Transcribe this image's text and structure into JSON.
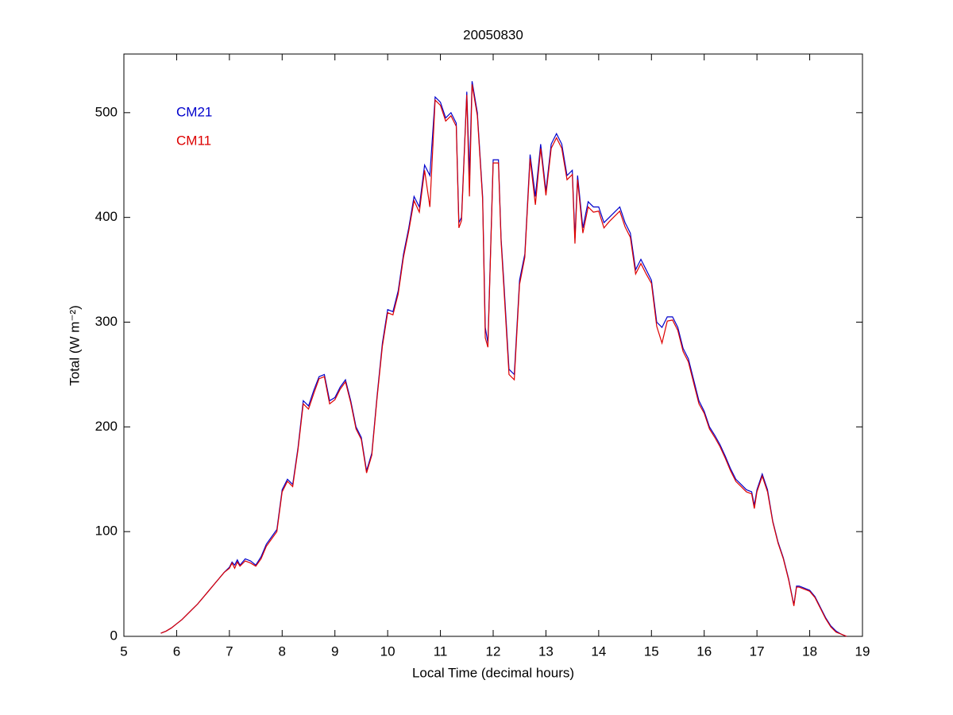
{
  "chart_data": {
    "type": "line",
    "title": "20050830",
    "xlabel": "Local Time (decimal hours)",
    "ylabel": "Total (W m⁻²)",
    "xlim": [
      5,
      19
    ],
    "xticks": [
      5,
      6,
      7,
      8,
      9,
      10,
      11,
      12,
      13,
      14,
      15,
      16,
      17,
      18,
      19
    ],
    "ylim": [
      0,
      556
    ],
    "yticks": [
      0,
      100,
      200,
      300,
      400,
      500
    ],
    "grid": false,
    "legend": "upper left",
    "x": [
      5.7,
      5.8,
      5.9,
      6.0,
      6.1,
      6.2,
      6.3,
      6.4,
      6.5,
      6.6,
      6.7,
      6.8,
      6.9,
      7.0,
      7.05,
      7.1,
      7.15,
      7.2,
      7.3,
      7.4,
      7.5,
      7.6,
      7.7,
      7.8,
      7.9,
      8.0,
      8.1,
      8.2,
      8.3,
      8.4,
      8.5,
      8.6,
      8.7,
      8.8,
      8.9,
      9.0,
      9.1,
      9.2,
      9.3,
      9.4,
      9.5,
      9.6,
      9.7,
      9.8,
      9.9,
      10.0,
      10.1,
      10.2,
      10.3,
      10.4,
      10.5,
      10.6,
      10.7,
      10.8,
      10.9,
      11.0,
      11.1,
      11.2,
      11.3,
      11.35,
      11.4,
      11.5,
      11.55,
      11.6,
      11.7,
      11.8,
      11.85,
      11.9,
      12.0,
      12.1,
      12.15,
      12.2,
      12.3,
      12.4,
      12.5,
      12.6,
      12.7,
      12.8,
      12.9,
      13.0,
      13.1,
      13.2,
      13.3,
      13.4,
      13.5,
      13.55,
      13.6,
      13.7,
      13.8,
      13.9,
      14.0,
      14.1,
      14.2,
      14.3,
      14.4,
      14.5,
      14.6,
      14.7,
      14.8,
      14.9,
      15.0,
      15.1,
      15.2,
      15.3,
      15.4,
      15.5,
      15.6,
      15.7,
      15.8,
      15.9,
      16.0,
      16.1,
      16.2,
      16.3,
      16.4,
      16.5,
      16.6,
      16.7,
      16.8,
      16.9,
      16.95,
      17.0,
      17.1,
      17.2,
      17.3,
      17.4,
      17.5,
      17.6,
      17.7,
      17.75,
      17.8,
      17.9,
      18.0,
      18.1,
      18.2,
      18.3,
      18.4,
      18.5,
      18.6,
      18.7
    ],
    "series": [
      {
        "name": "CM21",
        "color": "#0000cc",
        "values": [
          3,
          5,
          8,
          12,
          16,
          21,
          26,
          31,
          37,
          43,
          49,
          55,
          61,
          66,
          71,
          68,
          73,
          68,
          74,
          72,
          68,
          76,
          88,
          95,
          102,
          140,
          150,
          145,
          180,
          225,
          220,
          235,
          248,
          250,
          225,
          228,
          238,
          245,
          225,
          200,
          190,
          158,
          175,
          230,
          280,
          312,
          310,
          330,
          365,
          390,
          420,
          410,
          450,
          440,
          515,
          510,
          495,
          500,
          490,
          395,
          400,
          520,
          440,
          530,
          500,
          420,
          295,
          280,
          455,
          455,
          380,
          340,
          255,
          250,
          340,
          365,
          460,
          420,
          470,
          425,
          470,
          480,
          470,
          440,
          445,
          380,
          440,
          390,
          415,
          410,
          410,
          395,
          400,
          405,
          410,
          395,
          385,
          350,
          360,
          350,
          340,
          300,
          295,
          305,
          305,
          295,
          275,
          265,
          245,
          225,
          215,
          200,
          192,
          183,
          172,
          160,
          150,
          145,
          140,
          138,
          125,
          140,
          155,
          140,
          110,
          90,
          75,
          55,
          30,
          48,
          48,
          46,
          44,
          38,
          28,
          18,
          10,
          5,
          2,
          0
        ]
      },
      {
        "name": "CM11",
        "color": "#dd0000",
        "values": [
          3,
          5,
          8,
          12,
          16,
          21,
          26,
          31,
          37,
          43,
          49,
          55,
          61,
          65,
          70,
          65,
          71,
          67,
          72,
          70,
          67,
          74,
          86,
          93,
          100,
          138,
          148,
          143,
          178,
          222,
          217,
          232,
          246,
          248,
          222,
          226,
          236,
          243,
          223,
          198,
          188,
          156,
          173,
          228,
          277,
          309,
          307,
          327,
          362,
          387,
          416,
          405,
          445,
          410,
          512,
          507,
          492,
          497,
          487,
          390,
          397,
          517,
          420,
          527,
          497,
          417,
          285,
          276,
          452,
          452,
          377,
          335,
          250,
          245,
          336,
          362,
          456,
          412,
          466,
          421,
          466,
          476,
          466,
          436,
          441,
          375,
          436,
          385,
          410,
          405,
          406,
          390,
          396,
          401,
          406,
          391,
          381,
          346,
          356,
          346,
          337,
          296,
          280,
          301,
          302,
          292,
          272,
          262,
          242,
          222,
          213,
          198,
          190,
          181,
          170,
          158,
          148,
          143,
          138,
          136,
          122,
          138,
          153,
          138,
          109,
          89,
          74,
          54,
          29,
          47,
          47,
          45,
          43,
          37,
          27,
          17,
          9,
          4,
          2,
          0
        ]
      }
    ]
  }
}
